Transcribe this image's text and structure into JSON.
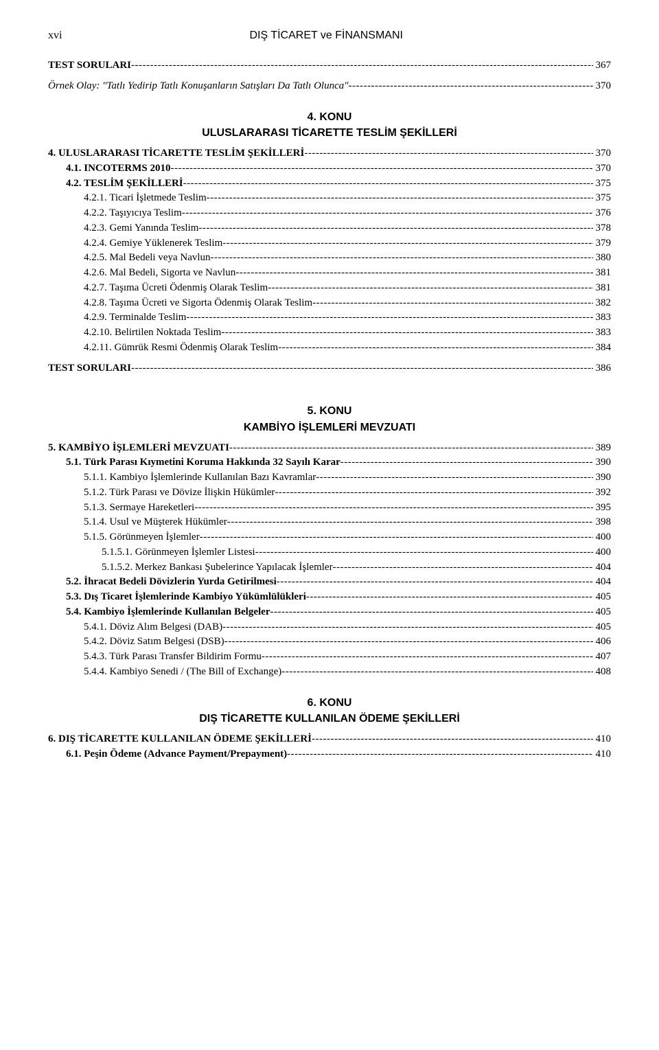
{
  "header": {
    "left": "xvi",
    "center": "DIŞ TİCARET ve FİNANSMANI"
  },
  "lines": [
    {
      "type": "toc",
      "label": "TEST SORULARI",
      "page": "367",
      "bold": true,
      "indent": 0,
      "space": true
    },
    {
      "type": "gap",
      "size": "md"
    },
    {
      "type": "toc",
      "label": "Örnek Olay: \"Tatlı Yedirip Tatlı Konuşanların Satışları Da Tatlı Olunca\" ",
      "page": "370",
      "italic": true,
      "indent": 0,
      "space": true
    },
    {
      "type": "konu",
      "num": "4. KONU",
      "title": "ULUSLARARASI TİCARETTE TESLİM ŞEKİLLERİ"
    },
    {
      "type": "toc",
      "label": "4. ULUSLARARASI TİCARETTE TESLİM ŞEKİLLERİ ",
      "page": "370",
      "bold": true,
      "indent": 0,
      "space": true
    },
    {
      "type": "toc",
      "label": "4.1. INCOTERMS 2010",
      "page": "370",
      "bold": true,
      "indent": 1
    },
    {
      "type": "toc",
      "label": "4.2. TESLİM ŞEKİLLERİ",
      "page": "375",
      "bold": true,
      "indent": 1
    },
    {
      "type": "toc",
      "label": "4.2.1. Ticari İşletmede Teslim ",
      "page": "375",
      "indent": 2
    },
    {
      "type": "toc",
      "label": "4.2.2. Taşıyıcıya Teslim ",
      "page": "376",
      "indent": 2
    },
    {
      "type": "toc",
      "label": "4.2.3. Gemi Yanında Teslim",
      "page": "378",
      "indent": 2
    },
    {
      "type": "toc",
      "label": "4.2.4. Gemiye Yüklenerek Teslim ",
      "page": "379",
      "indent": 2
    },
    {
      "type": "toc",
      "label": "4.2.5. Mal Bedeli veya Navlun",
      "page": "380",
      "indent": 2
    },
    {
      "type": "toc",
      "label": "4.2.6. Mal Bedeli, Sigorta ve Navlun ",
      "page": "381",
      "indent": 2
    },
    {
      "type": "toc",
      "label": "4.2.7. Taşıma Ücreti Ödenmiş Olarak Teslim ",
      "page": "381",
      "indent": 2
    },
    {
      "type": "toc",
      "label": "4.2.8. Taşıma Ücreti ve Sigorta Ödenmiş Olarak Teslim",
      "page": "382",
      "indent": 2
    },
    {
      "type": "toc",
      "label": "4.2.9. Terminalde Teslim",
      "page": "383",
      "indent": 2
    },
    {
      "type": "toc",
      "label": "4.2.10. Belirtilen Noktada Teslim ",
      "page": "383",
      "indent": 2
    },
    {
      "type": "toc",
      "label": "4.2.11. Gümrük Resmi Ödenmiş Olarak Teslim",
      "page": "384",
      "indent": 2
    },
    {
      "type": "gap",
      "size": "md"
    },
    {
      "type": "toc",
      "label": "TEST SORULARI",
      "page": "386",
      "bold": true,
      "indent": 0,
      "space": true
    },
    {
      "type": "gap",
      "size": "lg"
    },
    {
      "type": "konu",
      "num": "5. KONU",
      "title": "KAMBİYO İŞLEMLERİ MEVZUATI"
    },
    {
      "type": "toc",
      "label": "5. KAMBİYO İŞLEMLERİ MEVZUATI",
      "page": "389",
      "bold": true,
      "indent": 0,
      "space": true
    },
    {
      "type": "toc",
      "label": "5.1. Türk Parası Kıymetini Koruma Hakkında 32 Sayılı Karar",
      "page": "390",
      "bold": true,
      "indent": 1
    },
    {
      "type": "toc",
      "label": "5.1.1. Kambiyo İşlemlerinde Kullanılan Bazı Kavramlar ",
      "page": "390",
      "indent": 2
    },
    {
      "type": "toc",
      "label": "5.1.2. Türk Parası ve Dövize İlişkin Hükümler ",
      "page": "392",
      "indent": 2
    },
    {
      "type": "toc",
      "label": "5.1.3. Sermaye Hareketleri ",
      "page": "395",
      "indent": 2
    },
    {
      "type": "toc",
      "label": "5.1.4. Usul ve Müşterek Hükümler",
      "page": "398",
      "indent": 2
    },
    {
      "type": "toc",
      "label": "5.1.5. Görünmeyen İşlemler",
      "page": "400",
      "indent": 2
    },
    {
      "type": "toc",
      "label": "5.1.5.1. Görünmeyen İşlemler Listesi",
      "page": "400",
      "indent": 3
    },
    {
      "type": "toc",
      "label": "5.1.5.2. Merkez Bankası Şubelerince Yapılacak İşlemler ",
      "page": "404",
      "indent": 3
    },
    {
      "type": "toc",
      "label": "5.2. İhracat Bedeli Dövizlerin Yurda Getirilmesi",
      "page": "404",
      "bold": true,
      "indent": 1,
      "space": true
    },
    {
      "type": "toc",
      "label": "5.3. Dış Ticaret İşlemlerinde Kambiyo Yükümlülükleri ",
      "page": "405",
      "bold": true,
      "indent": 1
    },
    {
      "type": "toc",
      "label": "5.4. Kambiyo İşlemlerinde Kullanılan Belgeler",
      "page": "405",
      "bold": true,
      "indent": 1
    },
    {
      "type": "toc",
      "label": "5.4.1. Döviz Alım Belgesi (DAB) ",
      "page": "405",
      "indent": 2
    },
    {
      "type": "toc",
      "label": "5.4.2. Döviz Satım Belgesi (DSB)",
      "page": "406",
      "indent": 2
    },
    {
      "type": "toc",
      "label": "5.4.3. Türk Parası Transfer Bildirim Formu ",
      "page": "407",
      "indent": 2
    },
    {
      "type": "toc",
      "label": "5.4.4. Kambiyo Senedi / (The Bill of Exchange) ",
      "page": "408",
      "indent": 2
    },
    {
      "type": "konu",
      "num": "6. KONU",
      "title": "DIŞ TİCARETTE KULLANILAN ÖDEME ŞEKİLLERİ"
    },
    {
      "type": "toc",
      "label": "6.     DIŞ TİCARETTE KULLANILAN ÖDEME ŞEKİLLERİ",
      "page": "410",
      "bold": true,
      "indent": 0
    },
    {
      "type": "toc",
      "label": "6.1. Peşin Ödeme (Advance Payment/Prepayment) ",
      "page": "410",
      "bold": true,
      "indent": 1
    }
  ]
}
